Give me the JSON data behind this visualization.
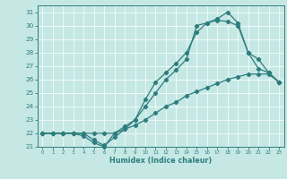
{
  "xlabel": "Humidex (Indice chaleur)",
  "bg_color": "#c5e8e5",
  "line_color": "#2e7d7d",
  "xlim": [
    -0.5,
    23.5
  ],
  "ylim": [
    21.0,
    31.5
  ],
  "xticks": [
    0,
    1,
    2,
    3,
    4,
    5,
    6,
    7,
    8,
    9,
    10,
    11,
    12,
    13,
    14,
    15,
    16,
    17,
    18,
    19,
    20,
    21,
    22,
    23
  ],
  "yticks": [
    21,
    22,
    23,
    24,
    25,
    26,
    27,
    28,
    29,
    30,
    31
  ],
  "line1_x": [
    0,
    1,
    2,
    3,
    4,
    5,
    6,
    7,
    8,
    9,
    10,
    11,
    12,
    13,
    14,
    15,
    16,
    17,
    18,
    19,
    20,
    21,
    22,
    23
  ],
  "line1_y": [
    22.0,
    22.0,
    22.0,
    22.0,
    22.0,
    21.5,
    21.1,
    21.7,
    22.3,
    23.0,
    24.5,
    25.8,
    26.5,
    27.2,
    28.0,
    29.5,
    30.2,
    30.5,
    31.0,
    30.2,
    28.0,
    26.8,
    26.5,
    25.8
  ],
  "line2_x": [
    0,
    1,
    2,
    3,
    4,
    5,
    6,
    7,
    8,
    9,
    10,
    11,
    12,
    13,
    14,
    15,
    16,
    17,
    18,
    19,
    20,
    21,
    22,
    23
  ],
  "line2_y": [
    22.0,
    22.0,
    22.0,
    22.0,
    21.8,
    21.3,
    21.0,
    22.0,
    22.5,
    23.0,
    24.0,
    25.0,
    26.0,
    26.7,
    27.5,
    30.0,
    30.2,
    30.4,
    30.3,
    30.0,
    28.0,
    27.5,
    26.5,
    25.8
  ],
  "line3_x": [
    0,
    1,
    2,
    3,
    4,
    5,
    6,
    7,
    8,
    9,
    10,
    11,
    12,
    13,
    14,
    15,
    16,
    17,
    18,
    19,
    20,
    21,
    22,
    23
  ],
  "line3_y": [
    22.0,
    22.0,
    22.0,
    22.0,
    22.0,
    22.0,
    22.0,
    22.0,
    22.3,
    22.6,
    23.0,
    23.5,
    24.0,
    24.3,
    24.8,
    25.1,
    25.4,
    25.7,
    26.0,
    26.2,
    26.4,
    26.4,
    26.4,
    25.8
  ]
}
